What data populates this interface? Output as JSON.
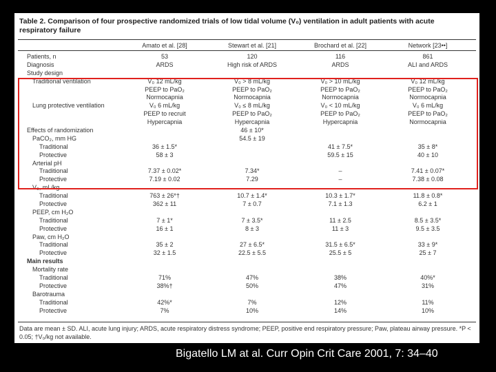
{
  "table": {
    "title": "Table 2. Comparison of four prospective randomized trials of low tidal volume (V₀) ventilation in adult patients with acute respiratory failure",
    "columns": [
      "Amato et al. [28]",
      "Stewart et al. [21]",
      "Brochard et al. [22]",
      "Network [23••]"
    ],
    "rows": [
      {
        "label": "Patients, n",
        "indent": 0,
        "bold": false,
        "cells": [
          "53",
          "120",
          "116",
          "861"
        ]
      },
      {
        "label": "Diagnosis",
        "indent": 0,
        "bold": false,
        "cells": [
          "ARDS",
          "High risk of ARDS",
          "ARDS",
          "ALI and ARDS"
        ]
      },
      {
        "label": "Study design",
        "indent": 0,
        "bold": false,
        "cells": [
          "",
          "",
          "",
          ""
        ]
      },
      {
        "label": "Traditional ventilation",
        "indent": 1,
        "bold": false,
        "cells": [
          "V₀ 12 mL/kg",
          "V₀ > 8 mL/kg",
          "V₀ > 10 mL/kg",
          "V₀ 12 mL/kg"
        ]
      },
      {
        "label": "",
        "indent": 1,
        "bold": false,
        "cells": [
          "PEEP to PaO₂",
          "PEEP to PaO₂",
          "PEEP to PaO₂",
          "PEEP to PaO₂"
        ]
      },
      {
        "label": "",
        "indent": 1,
        "bold": false,
        "cells": [
          "Normocapnia",
          "Normocapnia",
          "Normocapnia",
          "Normocapnia"
        ]
      },
      {
        "label": "Lung protective ventilation",
        "indent": 1,
        "bold": false,
        "cells": [
          "V₀ 6 mL/kg",
          "V₀ ≤ 8 mL/kg",
          "V₀ < 10 mL/kg",
          "V₀ 6 mL/kg"
        ]
      },
      {
        "label": "",
        "indent": 1,
        "bold": false,
        "cells": [
          "PEEP to recruit",
          "PEEP to PaO₂",
          "PEEP to PaO₂",
          "PEEP to PaO₂"
        ]
      },
      {
        "label": "",
        "indent": 1,
        "bold": false,
        "cells": [
          "Hypercapnia",
          "Hypercapnia",
          "Hypercapnia",
          "Normocapnia"
        ]
      },
      {
        "label": "Effects of randomization",
        "indent": 0,
        "bold": false,
        "cells": [
          "",
          "46 ± 10*",
          "",
          ""
        ]
      },
      {
        "label": "PaCO₂, mm HG",
        "indent": 1,
        "bold": false,
        "cells": [
          "",
          "54.5 ± 19",
          "",
          ""
        ]
      },
      {
        "label": "Traditional",
        "indent": 2,
        "bold": false,
        "cells": [
          "36 ± 1.5*",
          "",
          "41 ± 7.5*",
          "35 ± 8*"
        ]
      },
      {
        "label": "Protective",
        "indent": 2,
        "bold": false,
        "cells": [
          "58 ± 3",
          "",
          "59.5 ± 15",
          "40 ± 10"
        ]
      },
      {
        "label": "Arterial pH",
        "indent": 1,
        "bold": false,
        "cells": [
          "",
          "",
          "",
          ""
        ]
      },
      {
        "label": "Traditional",
        "indent": 2,
        "bold": false,
        "cells": [
          "7.37 ± 0.02*",
          "7.34*",
          "–",
          "7.41 ± 0.07*"
        ]
      },
      {
        "label": "Protective",
        "indent": 2,
        "bold": false,
        "cells": [
          "7.19 ± 0.02",
          "7.29",
          "–",
          "7.38 ± 0.08"
        ]
      },
      {
        "label": "V₀, mL/kg",
        "indent": 1,
        "bold": false,
        "cells": [
          "",
          "",
          "",
          ""
        ]
      },
      {
        "label": "Traditional",
        "indent": 2,
        "bold": false,
        "cells": [
          "763 ± 26*†",
          "10.7 ± 1.4*",
          "10.3 ± 1.7*",
          "11.8 ± 0.8*"
        ]
      },
      {
        "label": "Protective",
        "indent": 2,
        "bold": false,
        "cells": [
          "362 ± 11",
          "7 ± 0.7",
          "7.1 ± 1.3",
          "6.2 ± 1"
        ]
      },
      {
        "label": "PEEP, cm H₂O",
        "indent": 1,
        "bold": false,
        "cells": [
          "",
          "",
          "",
          ""
        ]
      },
      {
        "label": "Traditional",
        "indent": 2,
        "bold": false,
        "cells": [
          "7 ± 1*",
          "7 ± 3.5*",
          "11 ± 2.5",
          "8.5 ± 3.5*"
        ]
      },
      {
        "label": "Protective",
        "indent": 2,
        "bold": false,
        "cells": [
          "16 ± 1",
          "8 ± 3",
          "11 ± 3",
          "9.5 ± 3.5"
        ]
      },
      {
        "label": "Paw, cm H₂O",
        "indent": 1,
        "bold": false,
        "cells": [
          "",
          "",
          "",
          ""
        ]
      },
      {
        "label": "Traditional",
        "indent": 2,
        "bold": false,
        "cells": [
          "35 ± 2",
          "27 ± 6.5*",
          "31.5 ± 6.5*",
          "33 ± 9*"
        ]
      },
      {
        "label": "Protective",
        "indent": 2,
        "bold": false,
        "cells": [
          "32 ± 1.5",
          "22.5 ± 5.5",
          "25.5 ± 5",
          "25 ± 7"
        ]
      },
      {
        "label": "Main results",
        "indent": 0,
        "bold": true,
        "cells": [
          "",
          "",
          "",
          ""
        ]
      },
      {
        "label": "Mortality rate",
        "indent": 1,
        "bold": false,
        "cells": [
          "",
          "",
          "",
          ""
        ]
      },
      {
        "label": "Traditional",
        "indent": 2,
        "bold": false,
        "cells": [
          "71%",
          "47%",
          "38%",
          "40%*"
        ]
      },
      {
        "label": "Protective",
        "indent": 2,
        "bold": false,
        "cells": [
          "38%†",
          "50%",
          "47%",
          "31%"
        ]
      },
      {
        "label": "Barotrauma",
        "indent": 1,
        "bold": false,
        "cells": [
          "",
          "",
          "",
          ""
        ]
      },
      {
        "label": "Traditional",
        "indent": 2,
        "bold": false,
        "cells": [
          "42%*",
          "7%",
          "12%",
          "11%"
        ]
      },
      {
        "label": "Protective",
        "indent": 2,
        "bold": false,
        "cells": [
          "7%",
          "10%",
          "14%",
          "10%"
        ]
      }
    ],
    "footnote": "Data are mean ± SD. ALI, acute lung injury; ARDS, acute respiratory distress syndrome; PEEP, positive end respiratory pressure; Paw, plateau airway pressure. *P < 0.05; †V₀/kg not available."
  },
  "highlight_color": "#e0201c",
  "citation": "Bigatello LM at al.  Curr Opin Crit Care 2001, 7: 34–40"
}
